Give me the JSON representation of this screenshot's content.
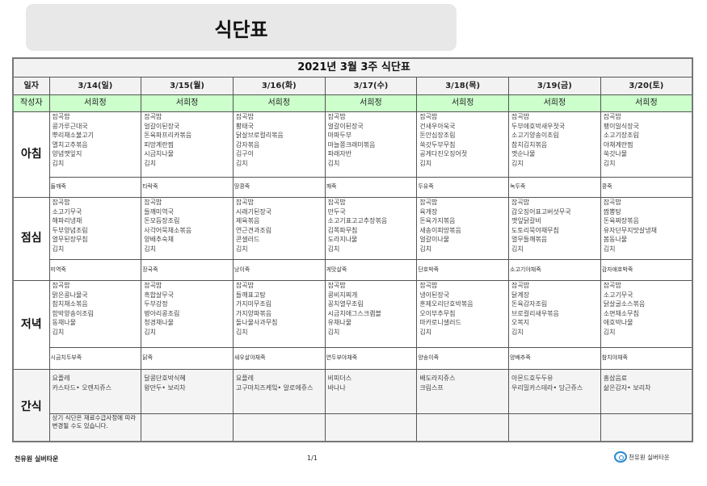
{
  "page_title": "식단표",
  "table_title": "2021년 3월 3주 식단표",
  "labels": {
    "date": "일자",
    "author": "작성자",
    "breakfast": "아침",
    "lunch": "점심",
    "dinner": "저녁",
    "snack": "간식"
  },
  "days": [
    {
      "date": "3/14(일)",
      "author": "서희정",
      "breakfast": [
        "잡곡밥",
        "콩가루근대국",
        "뿌리채소불고기",
        "멸치고추볶음",
        "양념깻잎지",
        "김치"
      ],
      "breakfast_porridge": "들깨죽",
      "lunch": [
        "잡곡밥",
        "소고기무국",
        "해파리냉채",
        "두부양념조림",
        "열무된장무침",
        "김치"
      ],
      "lunch_porridge": "미역죽",
      "dinner": [
        "잡곡밥",
        "맑은콩나물국",
        "참치채소볶음",
        "함박양송이조림",
        "동채나물",
        "김치"
      ],
      "dinner_porridge": "시금치두부죽",
      "snack": [
        "요플레",
        "카스타드• 오렌지쥬스"
      ],
      "note": "상기 식단은 재료수급사정에 따라 변경될 수도 있습니다."
    },
    {
      "date": "3/15(월)",
      "author": "서희정",
      "breakfast": [
        "잡곡밥",
        "얼갈이된장국",
        "돈육파프리카볶음",
        "피망계란찜",
        "시금치나물",
        "김치"
      ],
      "breakfast_porridge": "타락죽",
      "lunch": [
        "잡곡밥",
        "들깨미역국",
        "돈모듬장조림",
        "사각어묵채소볶음",
        "양배추숙채",
        "김치"
      ],
      "lunch_porridge": "장국죽",
      "dinner": [
        "잡곡밥",
        "흑합살무국",
        "두부강정",
        "병아리콩조림",
        "청경채나물",
        "김치"
      ],
      "dinner_porridge": "닭죽",
      "snack": [
        "달콩단호박식혜",
        "왕만두• 보리차"
      ],
      "note": ""
    },
    {
      "date": "3/16(화)",
      "author": "서희정",
      "breakfast": [
        "잡곡밥",
        "황태국",
        "닭살브로컬리볶음",
        "감자볶음",
        "김구이",
        "김치"
      ],
      "breakfast_porridge": "땅콩죽",
      "lunch": [
        "잡곡밥",
        "시래기된장국",
        "제육볶음",
        "연근견과조림",
        "콘샐러드",
        "김치"
      ],
      "lunch_porridge": "낭이죽",
      "dinner": [
        "잡곡밥",
        "들깨표고탕",
        "가지미무조림",
        "가지양파볶음",
        "돌나물사과무침",
        "김치"
      ],
      "dinner_porridge": "새우살야채죽",
      "snack": [
        "요플레",
        "고구마치즈케잌• 알로에쥬스"
      ],
      "note": ""
    },
    {
      "date": "3/17(수)",
      "author": "서희정",
      "breakfast": [
        "잡곡밥",
        "얼갈이된장국",
        "마파두부",
        "마늘쫑크래미볶음",
        "파래자반",
        "김치"
      ],
      "breakfast_porridge": "깨죽",
      "lunch": [
        "잡곡밥",
        "만두국",
        "소고기표고고추장볶음",
        "김쪽파무침",
        "도라지나물",
        "김치"
      ],
      "lunch_porridge": "게맛살죽",
      "dinner": [
        "잡곡밥",
        "콩비지찌개",
        "꽁치열무조림",
        "시금치애그스크램블",
        "유채나물",
        "김치"
      ],
      "dinner_porridge": "연두부야채죽",
      "snack": [
        "비피더스",
        "바나나"
      ],
      "note": ""
    },
    {
      "date": "3/18(목)",
      "author": "서희정",
      "breakfast": [
        "잡곡밥",
        "건새우아욱국",
        "돈안심장조림",
        "쑥갓두부무침",
        "공게다진오징어젓",
        "김치"
      ],
      "breakfast_porridge": "두유죽",
      "lunch": [
        "잡곡밥",
        "육개장",
        "돈육가지볶음",
        "새송이피망볶음",
        "얼갈이나물",
        "김치"
      ],
      "lunch_porridge": "단호박죽",
      "dinner": [
        "잡곡밥",
        "냉이된장국",
        "훈제오리단호박볶음",
        "오이부추무침",
        "마카로니샐러드",
        "김치"
      ],
      "dinner_porridge": "양송이죽",
      "snack": [
        "배도라지쥬스",
        "크림스프"
      ],
      "note": ""
    },
    {
      "date": "3/19(금)",
      "author": "서희정",
      "breakfast": [
        "잡곡밥",
        "두부애호박새우젓국",
        "소고기양송이조림",
        "참치김치볶음",
        "깻순나물",
        "김치"
      ],
      "breakfast_porridge": "녹두죽",
      "lunch": [
        "잡곡밥",
        "갑오징어표고버섯무국",
        "깻잎닭갈비",
        "도토리묵야채무침",
        "열무들깨볶음",
        "김치"
      ],
      "lunch_porridge": "소고기야채죽",
      "dinner": [
        "잡곡밥",
        "닭계장",
        "돈육감자조림",
        "브로컬리새우볶음",
        "오복지",
        "김치"
      ],
      "dinner_porridge": "양배추죽",
      "snack": [
        "아몬드호두두유",
        "우리밀카스테라• 당근쥬스"
      ],
      "note": ""
    },
    {
      "date": "3/20(토)",
      "author": "서희정",
      "breakfast": [
        "잡곡밥",
        "팽이일식장국",
        "소고기장조림",
        "야채계란찜",
        "쑥갓나물",
        "김치"
      ],
      "breakfast_porridge": "콩죽",
      "lunch": [
        "잡곡밥",
        "짬뽕탕",
        "돈육짜장볶음",
        "유자단무지맛살냉채",
        "봄동나물",
        "김치"
      ],
      "lunch_porridge": "감자애호박죽",
      "dinner": [
        "잡곡밥",
        "소고기무국",
        "닭살굴소스볶음",
        "소면채소무침",
        "애호박나물",
        "김치"
      ],
      "dinner_porridge": "참치야채죽",
      "snack": [
        "홍삼음료",
        "삶은감자• 보리차"
      ],
      "note": ""
    }
  ],
  "footer": {
    "left": "천유원 실버타운",
    "page": "1/1",
    "logo_text": "천유원 실버타운"
  },
  "colors": {
    "author_row": "#ccffcc",
    "header_row": "#f2f2f2",
    "title_box": "#e8e8e8",
    "logo": "#2a8ad0"
  }
}
